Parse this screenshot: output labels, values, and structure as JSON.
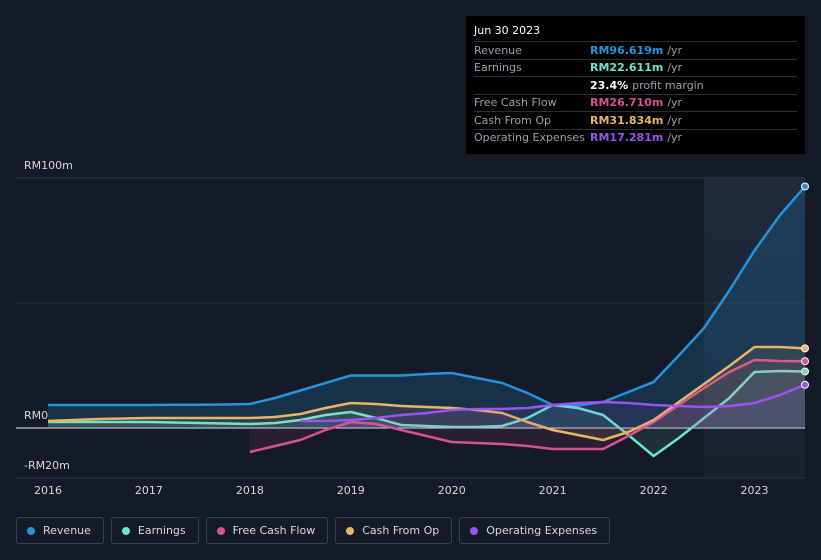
{
  "chart_data": {
    "type": "line",
    "x": [
      2016,
      2016.25,
      2016.5,
      2016.75,
      2017,
      2017.25,
      2017.5,
      2017.75,
      2018,
      2018.25,
      2018.5,
      2018.75,
      2019,
      2019.25,
      2019.5,
      2019.75,
      2020,
      2020.25,
      2020.5,
      2020.75,
      2021,
      2021.25,
      2021.5,
      2021.75,
      2022,
      2022.25,
      2022.5,
      2022.75,
      2023,
      2023.25,
      2023.5
    ],
    "series": [
      {
        "name": "Revenue",
        "color": "#2394df",
        "values": [
          9.2,
          9.2,
          9.2,
          9.2,
          9.2,
          9.3,
          9.3,
          9.4,
          9.6,
          12,
          15,
          18,
          21,
          21,
          21,
          21.6,
          22,
          20,
          18,
          14,
          9.2,
          9,
          10.4,
          14.4,
          18.4,
          29,
          40,
          55,
          71,
          85,
          96.619
        ]
      },
      {
        "name": "Earnings",
        "color": "#6be6cf",
        "values": [
          2.4,
          2.4,
          2.4,
          2.4,
          2.4,
          2.2,
          2,
          1.8,
          1.6,
          2,
          3.2,
          5.2,
          6.4,
          4,
          1.2,
          0.8,
          0.4,
          0.4,
          0.8,
          4,
          9.2,
          8,
          5.2,
          -2.8,
          -11.2,
          -4,
          4,
          12,
          22.4,
          22.8,
          22.611
        ]
      },
      {
        "name": "Free Cash Flow",
        "color": "#d6538d",
        "values": [
          null,
          null,
          null,
          null,
          null,
          null,
          null,
          null,
          -9.6,
          -7.2,
          -4.8,
          -0.8,
          2.4,
          1.6,
          -0.8,
          -3.2,
          -5.6,
          -6,
          -6.4,
          -7.2,
          -8.4,
          -8.4,
          -8.4,
          -3.2,
          2.4,
          9.2,
          16,
          22.4,
          27.2,
          26.8,
          26.71
        ]
      },
      {
        "name": "Cash From Op",
        "color": "#e9b467",
        "values": [
          2.8,
          3.2,
          3.6,
          3.8,
          4,
          4,
          4,
          4,
          4,
          4.4,
          5.6,
          8,
          10,
          9.6,
          8.8,
          8.4,
          8,
          7.2,
          6,
          2.4,
          -0.8,
          -2.8,
          -4.8,
          -1.6,
          3.2,
          10.4,
          17.6,
          24.8,
          32.4,
          32.4,
          31.834
        ]
      },
      {
        "name": "Operating Expenses",
        "color": "#9b53f0",
        "values": [
          null,
          null,
          null,
          null,
          null,
          null,
          null,
          null,
          null,
          null,
          2.8,
          2.8,
          3.2,
          4,
          5.2,
          6,
          7.2,
          7.6,
          7.6,
          8,
          9.2,
          10,
          10.4,
          10,
          9.2,
          8.8,
          8.4,
          8.8,
          10,
          13.2,
          17.281
        ]
      }
    ],
    "xlim": [
      2015.683,
      2023.5
    ],
    "xticks": [
      2016,
      2017,
      2018,
      2019,
      2020,
      2021,
      2022,
      2023
    ],
    "ylim": [
      -20,
      100
    ],
    "yticks": [
      {
        "value": -20,
        "label": "-RM20m"
      },
      {
        "value": 0,
        "label": "RM0"
      },
      {
        "value": 50,
        "label": null
      },
      {
        "value": 100,
        "label": "RM100m"
      }
    ],
    "highlight_from": 2022.5,
    "legend": "bottom-left"
  },
  "tooltip": {
    "date": "Jun 30 2023",
    "rows": [
      {
        "label": "Revenue",
        "value": "RM96.619m",
        "unit": "/yr",
        "color": "#2394df"
      },
      {
        "label": "Earnings",
        "value": "RM22.611m",
        "unit": "/yr",
        "color": "#6be6cf"
      },
      {
        "label": null,
        "value": "23.4%",
        "unit": "profit margin",
        "color": "#ffffff"
      },
      {
        "label": "Free Cash Flow",
        "value": "RM26.710m",
        "unit": "/yr",
        "color": "#d6538d"
      },
      {
        "label": "Cash From Op",
        "value": "RM31.834m",
        "unit": "/yr",
        "color": "#e9b467"
      },
      {
        "label": "Operating Expenses",
        "value": "RM17.281m",
        "unit": "/yr",
        "color": "#9b53f0"
      }
    ]
  }
}
